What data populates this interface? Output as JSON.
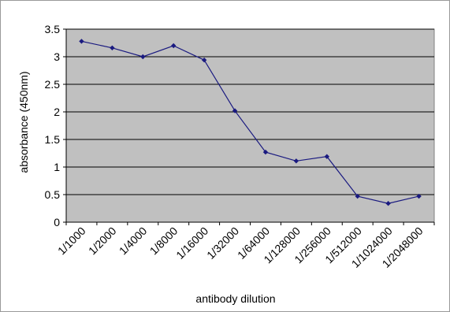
{
  "chart_data": {
    "type": "line",
    "title": "",
    "xlabel": "antibody dilution",
    "ylabel": "absorbance (450nm)",
    "ylim": [
      0,
      3.5
    ],
    "yticks": [
      "0",
      "0.5",
      "1",
      "1.5",
      "2",
      "2.5",
      "3",
      "3.5"
    ],
    "ytick_values": [
      0,
      0.5,
      1,
      1.5,
      2,
      2.5,
      3,
      3.5
    ],
    "categories": [
      "1/1000",
      "1/2000",
      "1/4000",
      "1/8000",
      "1/16000",
      "1/32000",
      "1/64000",
      "1/128000",
      "1/256000",
      "1/512000",
      "1/1024000",
      "1/2048000"
    ],
    "series": [
      {
        "values": [
          3.28,
          3.16,
          3.0,
          3.2,
          2.94,
          2.02,
          1.27,
          1.11,
          1.19,
          0.47,
          0.34,
          0.47
        ]
      }
    ],
    "grid": true,
    "legend": "none",
    "colors": {
      "plot_background": "#c0c0c0",
      "gridline": "#000000",
      "line": "#1a1a80",
      "marker": "#1a1a80"
    }
  }
}
